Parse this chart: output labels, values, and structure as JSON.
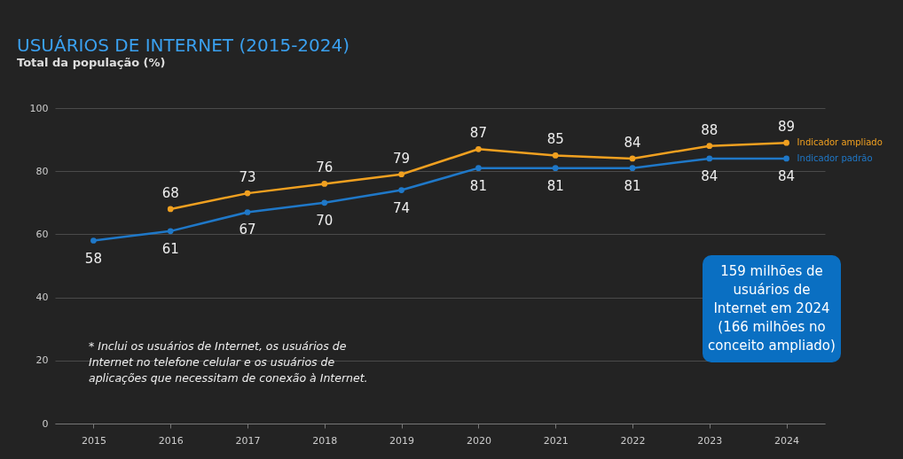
{
  "chart_data": {
    "type": "line",
    "title": "USUÁRIOS DE INTERNET (2015-2024)",
    "subtitle": "Total da população (%)",
    "categories": [
      "2015",
      "2016",
      "2017",
      "2018",
      "2019",
      "2020",
      "2021",
      "2022",
      "2023",
      "2024"
    ],
    "series": [
      {
        "name": "Indicador ampliado",
        "color": "#f0a020",
        "values": [
          null,
          68,
          73,
          76,
          79,
          87,
          85,
          84,
          88,
          89
        ]
      },
      {
        "name": "Indicador padrão",
        "color": "#1f78c8",
        "values": [
          58,
          61,
          67,
          70,
          74,
          81,
          81,
          81,
          84,
          84
        ]
      }
    ],
    "ylim": [
      0,
      100
    ],
    "yticks": [
      0,
      20,
      40,
      60,
      80,
      100
    ],
    "grid": "y",
    "legend": "right",
    "marker": "circle",
    "line_style": "solid",
    "data_labels": true,
    "annotations": [
      "* Inclui os usuários de Internet, os usuários de Internet no telefone celular e os usuários de aplicações que necessitam de conexão à Internet.",
      "159 milhões de usuários de Internet em 2024 (166 milhões no conceito ampliado)"
    ]
  }
}
